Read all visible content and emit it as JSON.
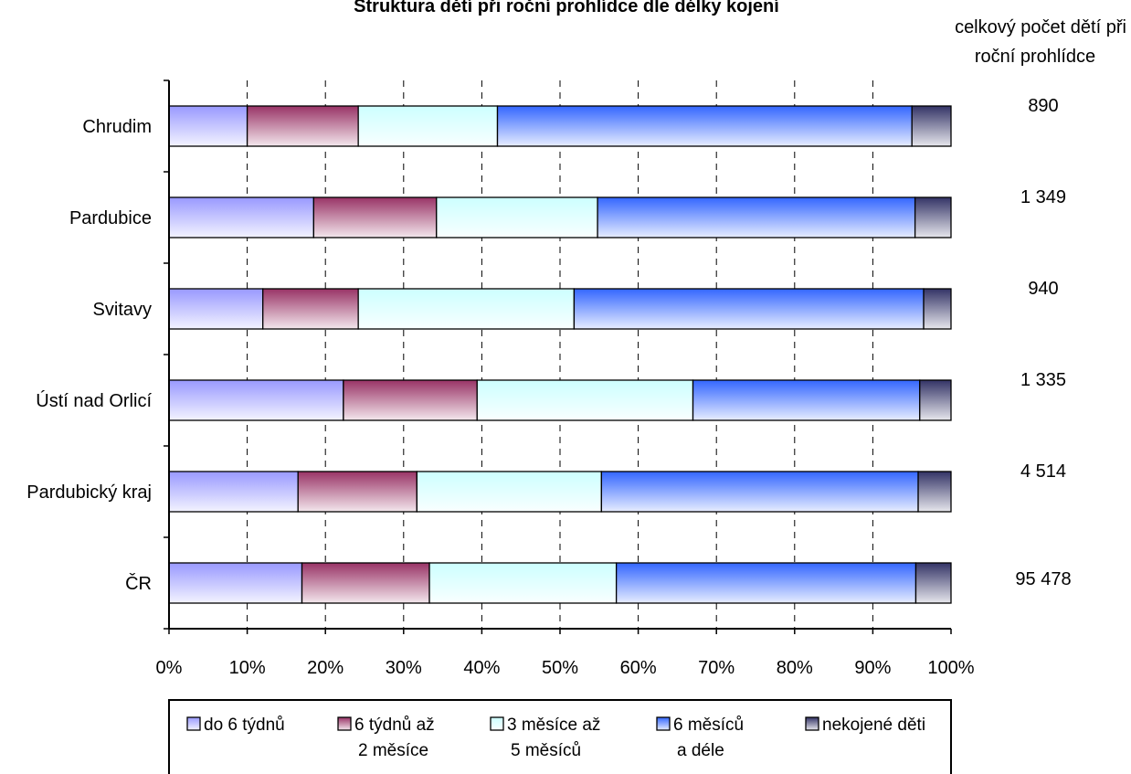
{
  "chart_data": {
    "type": "bar",
    "orientation": "horizontal",
    "stacked": "percent",
    "title": "Struktura dětí při roční prohlídce dle délky kojení",
    "categories": [
      "Chrudim",
      "Pardubice",
      "Svitavy",
      "Ústí nad Orlicí",
      "Pardubický kraj",
      "ČR"
    ],
    "series": [
      {
        "name": "do 6 týdnů",
        "name_lines": [
          "do 6 týdnů"
        ],
        "color": "#9999ff",
        "values": [
          10.0,
          18.5,
          12.0,
          22.3,
          16.5,
          17.0
        ]
      },
      {
        "name": "6 týdnů až 2 měsíce",
        "name_lines": [
          "6 týdnů až",
          "2 měsíce"
        ],
        "color": "#993366",
        "values": [
          14.2,
          15.7,
          12.2,
          17.1,
          15.2,
          16.3
        ]
      },
      {
        "name": "3 měsíce až 5 měsíců",
        "name_lines": [
          "3 měsíce až",
          "5 měsíců"
        ],
        "color": "#ccffff",
        "values": [
          17.8,
          20.6,
          27.6,
          27.6,
          23.6,
          23.9
        ]
      },
      {
        "name": "6 měsíců a déle",
        "name_lines": [
          "6 měsíců",
          "a déle"
        ],
        "color": "#3366ff",
        "values": [
          53.0,
          40.6,
          44.7,
          29.0,
          40.5,
          38.3
        ]
      },
      {
        "name": "nekojené děti",
        "name_lines": [
          "nekojené děti"
        ],
        "color": "#333366",
        "values": [
          5.0,
          4.6,
          3.5,
          4.0,
          4.2,
          4.5
        ]
      }
    ],
    "x_ticks": [
      "0%",
      "10%",
      "20%",
      "30%",
      "40%",
      "50%",
      "60%",
      "70%",
      "80%",
      "90%",
      "100%"
    ],
    "xlim": [
      0,
      100
    ],
    "grid": "vertical dashed",
    "legend_position": "bottom",
    "totals_header_lines": [
      "celkový počet dětí při",
      "roční prohlídce"
    ],
    "totals": [
      "890",
      "1 349",
      "940",
      "1 335",
      "4 514",
      "95 478"
    ]
  }
}
